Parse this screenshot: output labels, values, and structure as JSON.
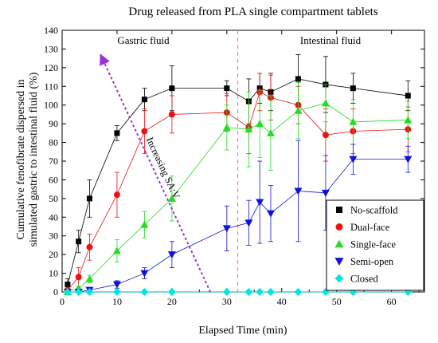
{
  "chart_data": {
    "type": "line",
    "title": "Drug released from PLA single compartment tablets",
    "xlabel": "Elapsed Time (min)",
    "ylabel_lines": [
      "Cumulative fenofibrate dispersed in",
      "simulated gastric to intestinal fluid (%)"
    ],
    "xlim": [
      0,
      66
    ],
    "ylim": [
      0,
      140
    ],
    "xticks": [
      0,
      10,
      20,
      30,
      40,
      50,
      60
    ],
    "yticks": [
      0,
      10,
      20,
      30,
      40,
      50,
      60,
      70,
      80,
      90,
      100,
      110,
      120,
      130,
      140
    ],
    "grid": false,
    "legend_position": "bottom-right",
    "regions": [
      {
        "label": "Gastric fluid"
      },
      {
        "label": "Intestinal fluid"
      }
    ],
    "divider_x": 32,
    "annotation": {
      "text": "Increasing SA:V",
      "arrow_from": [
        27,
        0
      ],
      "arrow_to": [
        7,
        127
      ]
    },
    "series": [
      {
        "name": "No-scaffold",
        "color": "#000000",
        "marker": "square",
        "x": [
          1,
          3,
          5,
          10,
          15,
          20,
          30,
          34,
          36,
          38,
          43,
          48,
          53,
          63
        ],
        "y": [
          4,
          27,
          50,
          85,
          103,
          109,
          109,
          102,
          109,
          107,
          114,
          111,
          109,
          105
        ],
        "err": [
          3,
          6,
          10,
          4,
          6,
          12,
          4,
          12,
          8,
          10,
          13,
          15,
          8,
          8
        ]
      },
      {
        "name": "Dual-face",
        "color": "#ee1111",
        "marker": "circle",
        "x": [
          1,
          3,
          5,
          10,
          15,
          20,
          30,
          34,
          36,
          38,
          43,
          48,
          53,
          63
        ],
        "y": [
          1,
          8,
          24,
          52,
          86,
          95,
          96,
          88,
          107,
          104,
          100,
          84,
          86,
          87
        ],
        "err": [
          1,
          5,
          7,
          12,
          12,
          10,
          10,
          14,
          10,
          12,
          10,
          14,
          12,
          12
        ]
      },
      {
        "name": "Single-face",
        "color": "#22dd22",
        "marker": "triangle-up",
        "x": [
          1,
          3,
          5,
          10,
          15,
          20,
          30,
          34,
          36,
          38,
          43,
          48,
          53,
          63
        ],
        "y": [
          0,
          2,
          7,
          22,
          36,
          50,
          88,
          87,
          90,
          85,
          97,
          101,
          91,
          92
        ],
        "err": [
          0,
          1,
          2,
          6,
          7,
          12,
          12,
          20,
          18,
          20,
          15,
          10,
          12,
          10
        ]
      },
      {
        "name": "Semi-open",
        "color": "#1111dd",
        "marker": "triangle-down",
        "x": [
          1,
          3,
          5,
          10,
          15,
          20,
          30,
          34,
          36,
          38,
          43,
          48,
          53,
          63
        ],
        "y": [
          0,
          0,
          1,
          4,
          10,
          20,
          34,
          37,
          48,
          42,
          54,
          53,
          71,
          71
        ],
        "err": [
          0,
          0,
          1,
          2,
          3,
          7,
          12,
          12,
          22,
          15,
          27,
          20,
          8,
          7
        ]
      },
      {
        "name": "Closed",
        "color": "#00e5e5",
        "marker": "diamond",
        "x": [
          1,
          3,
          5,
          10,
          15,
          20,
          30,
          34,
          36,
          38,
          43,
          48,
          53,
          63
        ],
        "y": [
          0,
          0,
          0,
          0,
          0,
          0,
          0,
          0,
          0,
          0,
          0,
          0,
          0,
          0
        ],
        "err": [
          0,
          0,
          0,
          0,
          0,
          0,
          0,
          0,
          0,
          0,
          0,
          0,
          0,
          0
        ]
      }
    ]
  }
}
